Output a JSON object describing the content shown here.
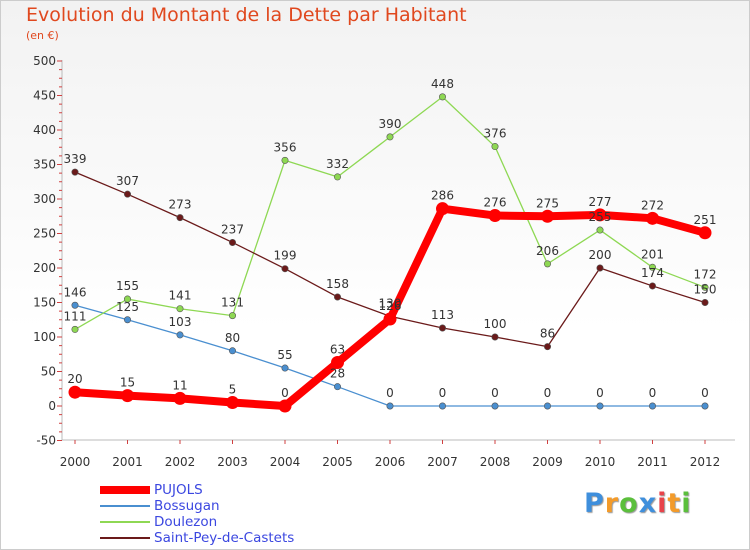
{
  "chart_data": {
    "type": "line",
    "title": "Evolution du Montant de la Dette par Habitant",
    "subtitle": "(en €)",
    "xlabel": "",
    "ylabel": "",
    "categories": [
      "2000",
      "2001",
      "2002",
      "2003",
      "2004",
      "2005",
      "2006",
      "2007",
      "2008",
      "2009",
      "2010",
      "2011",
      "2012"
    ],
    "yticks": [
      "500",
      "450",
      "400",
      "350",
      "300",
      "250",
      "200",
      "150",
      "100",
      "50",
      "0",
      "-50"
    ],
    "ylim": [
      -50,
      500
    ],
    "grid": false,
    "legend_position": "bottom-left",
    "series": [
      {
        "name": "PUJOLS",
        "color": "#ff0000",
        "values": [
          20,
          15,
          11,
          5,
          0,
          63,
          126,
          286,
          276,
          275,
          277,
          272,
          251
        ],
        "labels": [
          "20",
          "15",
          "11",
          "5",
          "0",
          "63",
          "126",
          "286",
          "276",
          "275",
          "277",
          "272",
          "251"
        ]
      },
      {
        "name": "Bossugan",
        "color": "#4a8fd0",
        "values": [
          146,
          125,
          103,
          80,
          55,
          28,
          0,
          0,
          0,
          0,
          0,
          0,
          0
        ],
        "labels": [
          "146",
          "125",
          "103",
          "80",
          "55",
          "28",
          "0",
          "0",
          "0",
          "0",
          "0",
          "0",
          "0"
        ]
      },
      {
        "name": "Doulezon",
        "color": "#8ed853",
        "values": [
          111,
          155,
          141,
          131,
          356,
          332,
          390,
          448,
          376,
          206,
          255,
          201,
          172
        ],
        "labels": [
          "111",
          "155",
          "141",
          "131",
          "356",
          "332",
          "390",
          "448",
          "376",
          "206",
          "255",
          "201",
          "172"
        ]
      },
      {
        "name": "Saint-Pey-de-Castets",
        "color": "#6b1a1a",
        "values": [
          339,
          307,
          273,
          237,
          199,
          158,
          130,
          113,
          100,
          86,
          200,
          174,
          150
        ],
        "labels": [
          "339",
          "307",
          "273",
          "237",
          "199",
          "158",
          "130",
          "113",
          "100",
          "86",
          "200",
          "174",
          "150"
        ]
      }
    ]
  },
  "logo": {
    "letters": [
      "P",
      "r",
      "o",
      "x",
      "i",
      "t",
      "i"
    ],
    "colors": [
      "#3f8fdc",
      "#f39b2a",
      "#5bbf3c",
      "#3f8fdc",
      "#e8434a",
      "#f39b2a",
      "#5bbf3c"
    ]
  }
}
